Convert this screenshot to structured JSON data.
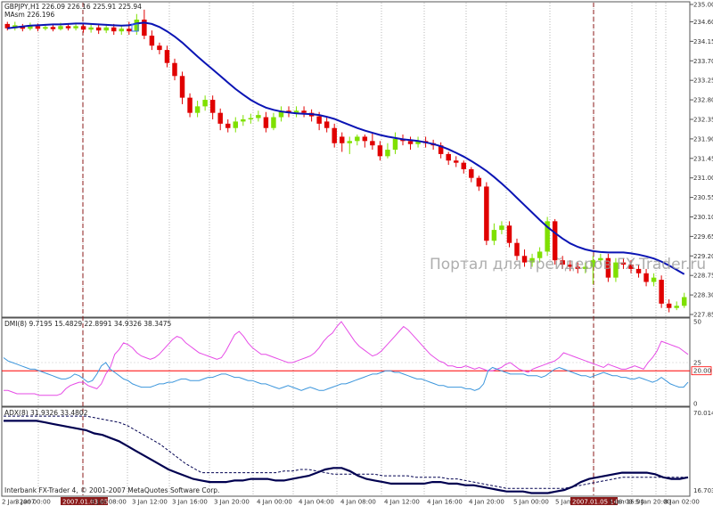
{
  "header": {
    "symbol_line": "GBPJPY,H1  226.09 226.16 225.91 225.94",
    "ma_line": "MAsm 226.196",
    "dmi_line": "DMI(8) 9.7195 15.4829 22.8991 34.9326 38.3475",
    "adx_line": "ADX(8) 31.9326 33.4802"
  },
  "watermark": "Портал для трейдеров FX-Trader.ru",
  "footer": "Interbank FX-Trader 4, © 2001-2007 MetaQuotes Software Corp.",
  "colors": {
    "bull": "#7fe000",
    "bear": "#e00000",
    "ma": "#0a14b4",
    "dmi_plus": "#e64be6",
    "dmi_minus": "#3c96dc",
    "adx_main": "#000050",
    "adx_signal": "#000050",
    "level": "#ff0000",
    "separator": "#8b1a1a"
  },
  "chart_data": [
    {
      "type": "candlestick",
      "price_ticks": [
        "235.00",
        "234.60",
        "234.15",
        "233.70",
        "233.25",
        "232.80",
        "232.35",
        "231.90",
        "231.45",
        "231.00",
        "230.55",
        "230.10",
        "229.65",
        "229.20",
        "228.75",
        "228.30",
        "227.85"
      ],
      "ylim": [
        227.85,
        235.0
      ],
      "x_ticks": [
        "2 Jan 2007",
        "3 Jan 00:00",
        "2007.01.03 05:00",
        "3 Jan 08:00",
        "3 Jan 12:00",
        "3 Jan 16:00",
        "3 Jan 20:00",
        "4 Jan 00:00",
        "4 Jan 04:00",
        "4 Jan 08:00",
        "4 Jan 12:00",
        "4 Jan 16:00",
        "4 Jan 20:00",
        "5 Jan 00:00",
        "5 Jan 04:00",
        "5 Jan 08:00",
        "2007.01.05 14:00",
        "5 Jan 16:00",
        "5 Jan 20:00",
        "8 Jan 02:00"
      ],
      "candles": [
        [
          234.55,
          234.45,
          234.6,
          234.4
        ],
        [
          234.45,
          234.52,
          234.6,
          234.4
        ],
        [
          234.5,
          234.44,
          234.55,
          234.38
        ],
        [
          234.44,
          234.5,
          234.58,
          234.4
        ],
        [
          234.5,
          234.44,
          234.56,
          234.38
        ],
        [
          234.44,
          234.48,
          234.55,
          234.4
        ],
        [
          234.48,
          234.43,
          234.54,
          234.38
        ],
        [
          234.43,
          234.5,
          234.58,
          234.4
        ],
        [
          234.5,
          234.45,
          234.56,
          234.4
        ],
        [
          234.45,
          234.5,
          234.58,
          234.4
        ],
        [
          234.5,
          234.42,
          234.56,
          234.35
        ],
        [
          234.42,
          234.47,
          234.55,
          234.35
        ],
        [
          234.47,
          234.4,
          234.54,
          234.32
        ],
        [
          234.4,
          234.47,
          234.55,
          234.34
        ],
        [
          234.47,
          234.38,
          234.55,
          234.3
        ],
        [
          234.38,
          234.44,
          234.52,
          234.3
        ],
        [
          234.44,
          234.38,
          234.6,
          234.3
        ],
        [
          234.38,
          234.65,
          234.78,
          234.3
        ],
        [
          234.65,
          234.28,
          234.88,
          234.2
        ],
        [
          234.28,
          234.05,
          234.4,
          233.95
        ],
        [
          234.05,
          233.95,
          234.12,
          233.85
        ],
        [
          233.95,
          233.65,
          234.05,
          233.55
        ],
        [
          233.65,
          233.35,
          233.75,
          233.25
        ],
        [
          233.35,
          232.85,
          233.45,
          232.7
        ],
        [
          232.85,
          232.5,
          232.95,
          232.4
        ],
        [
          232.5,
          232.65,
          232.78,
          232.4
        ],
        [
          232.65,
          232.8,
          232.9,
          232.55
        ],
        [
          232.8,
          232.5,
          232.9,
          232.35
        ],
        [
          232.5,
          232.25,
          232.6,
          232.1
        ],
        [
          232.25,
          232.15,
          232.35,
          232.05
        ],
        [
          232.15,
          232.3,
          232.4,
          232.05
        ],
        [
          232.3,
          232.35,
          232.45,
          232.2
        ],
        [
          232.35,
          232.38,
          232.48,
          232.25
        ],
        [
          232.38,
          232.45,
          232.55,
          232.3
        ],
        [
          232.4,
          232.15,
          232.52,
          232.05
        ],
        [
          232.15,
          232.4,
          232.5,
          232.1
        ],
        [
          232.4,
          232.55,
          232.65,
          232.3
        ],
        [
          232.55,
          232.5,
          232.65,
          232.4
        ],
        [
          232.5,
          232.55,
          232.65,
          232.4
        ],
        [
          232.55,
          232.5,
          232.65,
          232.4
        ],
        [
          232.5,
          232.42,
          232.58,
          232.3
        ],
        [
          232.42,
          232.25,
          232.52,
          232.1
        ],
        [
          232.3,
          232.15,
          232.4,
          232.05
        ],
        [
          232.15,
          231.8,
          232.25,
          231.7
        ],
        [
          231.95,
          231.8,
          232.05,
          231.6
        ],
        [
          231.8,
          231.85,
          231.95,
          231.55
        ],
        [
          231.85,
          231.95,
          232.0,
          231.75
        ],
        [
          231.95,
          231.85,
          232.0,
          231.7
        ],
        [
          231.85,
          231.75,
          232.05,
          231.65
        ],
        [
          231.75,
          231.5,
          231.85,
          231.4
        ],
        [
          231.5,
          231.65,
          231.8,
          231.45
        ],
        [
          231.65,
          231.9,
          232.05,
          231.55
        ],
        [
          231.9,
          231.85,
          232.0,
          231.75
        ],
        [
          231.85,
          231.78,
          231.95,
          231.65
        ],
        [
          231.78,
          231.85,
          231.95,
          231.7
        ],
        [
          231.85,
          231.8,
          231.95,
          231.7
        ],
        [
          231.8,
          231.75,
          231.88,
          231.65
        ],
        [
          231.75,
          231.55,
          231.82,
          231.45
        ],
        [
          231.55,
          231.4,
          231.6,
          231.3
        ],
        [
          231.4,
          231.35,
          231.5,
          231.25
        ],
        [
          231.35,
          231.2,
          231.4,
          231.1
        ],
        [
          231.2,
          231.0,
          231.25,
          230.9
        ],
        [
          231.0,
          230.8,
          231.05,
          230.7
        ],
        [
          230.8,
          229.55,
          230.9,
          229.45
        ],
        [
          229.55,
          229.8,
          229.95,
          229.45
        ],
        [
          229.8,
          229.9,
          230.0,
          229.7
        ],
        [
          229.9,
          229.5,
          230.0,
          229.4
        ],
        [
          229.5,
          229.2,
          229.6,
          229.1
        ],
        [
          229.2,
          229.05,
          229.35,
          228.95
        ],
        [
          229.05,
          229.15,
          229.25,
          228.95
        ],
        [
          229.15,
          229.3,
          229.4,
          229.05
        ],
        [
          229.3,
          230.0,
          230.1,
          229.2
        ],
        [
          230.0,
          229.1,
          230.05,
          229.0
        ],
        [
          229.1,
          229.0,
          229.2,
          228.9
        ],
        [
          229.0,
          228.95,
          229.1,
          228.85
        ],
        [
          228.95,
          228.9,
          229.05,
          228.8
        ],
        [
          228.9,
          228.95,
          229.05,
          228.8
        ],
        [
          228.95,
          229.1,
          229.2,
          228.55
        ],
        [
          229.1,
          229.15,
          229.25,
          229.0
        ],
        [
          229.15,
          228.7,
          229.25,
          228.6
        ],
        [
          228.7,
          229.05,
          229.15,
          228.6
        ],
        [
          229.05,
          229.0,
          229.15,
          228.9
        ],
        [
          229.0,
          228.9,
          229.1,
          228.8
        ],
        [
          228.9,
          228.8,
          229.0,
          228.7
        ],
        [
          228.8,
          228.6,
          228.9,
          228.5
        ],
        [
          228.6,
          228.7,
          228.8,
          228.5
        ],
        [
          228.65,
          228.1,
          228.75,
          228.0
        ],
        [
          228.1,
          228.0,
          228.2,
          227.9
        ],
        [
          228.0,
          228.05,
          228.15,
          227.95
        ],
        [
          228.05,
          228.25,
          228.35,
          228.0
        ]
      ],
      "ma_values": [
        234.45,
        234.47,
        234.49,
        234.51,
        234.52,
        234.53,
        234.54,
        234.54,
        234.55,
        234.56,
        234.56,
        234.55,
        234.54,
        234.53,
        234.52,
        234.51,
        234.52,
        234.56,
        234.58,
        234.55,
        234.48,
        234.38,
        234.26,
        234.12,
        233.96,
        233.8,
        233.65,
        233.5,
        233.35,
        233.2,
        233.05,
        232.92,
        232.8,
        232.7,
        232.62,
        232.57,
        232.53,
        232.51,
        232.49,
        232.48,
        232.47,
        232.45,
        232.41,
        232.36,
        232.29,
        232.22,
        232.15,
        232.09,
        232.04,
        231.99,
        231.95,
        231.92,
        231.89,
        231.87,
        231.85,
        231.82,
        231.78,
        231.73,
        231.66,
        231.58,
        231.49,
        231.39,
        231.28,
        231.16,
        231.02,
        230.87,
        230.71,
        230.54,
        230.37,
        230.2,
        230.03,
        229.87,
        229.73,
        229.6,
        229.49,
        229.41,
        229.35,
        229.31,
        229.29,
        229.28,
        229.28,
        229.28,
        229.26,
        229.23,
        229.19,
        229.14,
        229.07,
        228.98,
        228.88,
        228.78
      ]
    },
    {
      "type": "line",
      "name_text": "DMI(8) 9.7195 15.4829 22.8991 34.9326 38.3475",
      "ylim": [
        0,
        50
      ],
      "ticks": [
        "50",
        "25",
        "20.00",
        "0"
      ],
      "level": 20,
      "series": [
        {
          "name": "+DI",
          "values": [
            8,
            8,
            7,
            6,
            6,
            6,
            6,
            6,
            5,
            5,
            5,
            5,
            5,
            6,
            9,
            11,
            12,
            13,
            13,
            11,
            10,
            9,
            12,
            18,
            22,
            30,
            33,
            37,
            36,
            34,
            31,
            29,
            28,
            27,
            28,
            30,
            33,
            36,
            39,
            41,
            40,
            37,
            35,
            33,
            31,
            30,
            29,
            28,
            27,
            28,
            32,
            37,
            42,
            44,
            41,
            37,
            34,
            32,
            30,
            30,
            29,
            28,
            27,
            26,
            25,
            25,
            26,
            27,
            28,
            29,
            31,
            34,
            38,
            41,
            43,
            47,
            50,
            46,
            42,
            38,
            35,
            33,
            31,
            29,
            30,
            32,
            35,
            38,
            41,
            44,
            47,
            45,
            42,
            39,
            36,
            33,
            30,
            28,
            26,
            25,
            23,
            23,
            22,
            22,
            23,
            22,
            21,
            22,
            21,
            20,
            20,
            21,
            22,
            24,
            25,
            23,
            21,
            20,
            19,
            21,
            22,
            23,
            24,
            25,
            26,
            28,
            31,
            30,
            29,
            28,
            27,
            26,
            25,
            24,
            23,
            22,
            24,
            23,
            22,
            21,
            21,
            22,
            23,
            22,
            21,
            25,
            28,
            32,
            38,
            37,
            36,
            35,
            34,
            32,
            30
          ]
        },
        {
          "name": "-DI",
          "values": [
            28,
            26,
            25,
            24,
            23,
            22,
            21,
            21,
            20,
            19,
            18,
            17,
            16,
            15,
            15,
            16,
            18,
            17,
            15,
            13,
            14,
            18,
            23,
            25,
            21,
            19,
            17,
            15,
            14,
            12,
            11,
            10,
            10,
            10,
            11,
            12,
            12,
            13,
            13,
            14,
            15,
            15,
            14,
            14,
            14,
            15,
            16,
            16,
            17,
            18,
            18,
            17,
            16,
            16,
            15,
            14,
            14,
            13,
            12,
            12,
            11,
            10,
            9,
            10,
            11,
            10,
            9,
            8,
            9,
            10,
            9,
            8,
            8,
            9,
            10,
            11,
            12,
            12,
            13,
            14,
            15,
            16,
            17,
            18,
            18,
            19,
            20,
            20,
            19,
            19,
            18,
            17,
            16,
            15,
            15,
            14,
            13,
            12,
            11,
            11,
            10,
            10,
            10,
            10,
            9,
            9,
            8,
            9,
            12,
            20,
            22,
            21,
            20,
            19,
            18,
            18,
            18,
            18,
            17,
            17,
            17,
            16,
            17,
            19,
            21,
            22,
            21,
            20,
            19,
            18,
            17,
            17,
            16,
            17,
            18,
            19,
            18,
            17,
            17,
            16,
            16,
            15,
            15,
            16,
            15,
            14,
            13,
            14,
            16,
            14,
            12,
            11,
            10,
            10,
            13
          ]
        }
      ]
    },
    {
      "type": "line",
      "name_text": "ADX(8) 31.9326 33.4802",
      "ylim": [
        16.7035,
        70.0147
      ],
      "ticks": [
        "70.0147",
        "16.7035"
      ],
      "series": [
        {
          "name": "ADX",
          "values": [
            63,
            63,
            63,
            63,
            63,
            62,
            61,
            60,
            59,
            58,
            57,
            55,
            54,
            52,
            50,
            47,
            44,
            41,
            38,
            35,
            32,
            30,
            28,
            26,
            25,
            24,
            24,
            24,
            25,
            25,
            26,
            26,
            26,
            25,
            25,
            26,
            27,
            28,
            30,
            32,
            33,
            33,
            31,
            28,
            26,
            25,
            24,
            23,
            23,
            23,
            23,
            23,
            24,
            24,
            23,
            23,
            22,
            22,
            21,
            20,
            19,
            18,
            18,
            18,
            17,
            17,
            17,
            18,
            19,
            21,
            24,
            26,
            27,
            28,
            29,
            30,
            30,
            30,
            30,
            29,
            27,
            26,
            26,
            27
          ]
        },
        {
          "name": "ADXR",
          "values": [
            66,
            66,
            66,
            66,
            66,
            66,
            66,
            66,
            66,
            66,
            66,
            65,
            64,
            63,
            62,
            60,
            57,
            54,
            51,
            48,
            44,
            40,
            36,
            33,
            30,
            30,
            30,
            30,
            30,
            30,
            30,
            30,
            30,
            30,
            31,
            31,
            32,
            32,
            31,
            30,
            29,
            29,
            29,
            29,
            29,
            29,
            28,
            28,
            28,
            28,
            27,
            27,
            27,
            27,
            26,
            26,
            25,
            24,
            23,
            22,
            21,
            20,
            20,
            20,
            20,
            20,
            20,
            20,
            20,
            21,
            22,
            23,
            24,
            25,
            26,
            27,
            27,
            27,
            27,
            27,
            27,
            27,
            27,
            27
          ]
        }
      ]
    }
  ]
}
